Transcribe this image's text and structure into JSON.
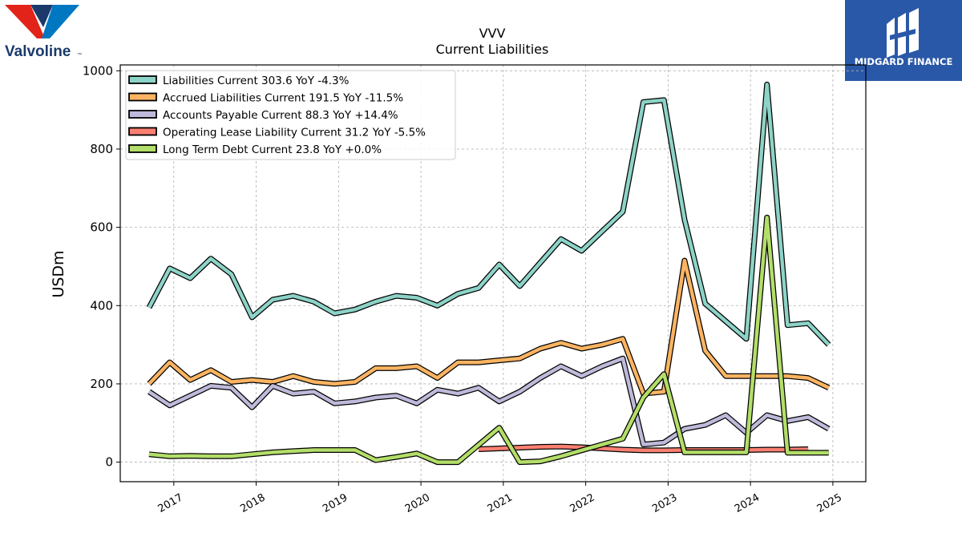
{
  "logos": {
    "left_text": "Valvoline",
    "left_tm": "™",
    "right_text": "MIDGARD FINANCE"
  },
  "colors": {
    "liabilities_current": "#8dd3c7",
    "accrued_liabilities": "#fdb462",
    "accounts_payable": "#bebada",
    "operating_lease": "#fb8072",
    "long_term_debt": "#b3de69",
    "valvoline_red": "#e2231a",
    "valvoline_blue": "#0078c1",
    "valvoline_navy": "#1b3a6b",
    "midgard_blue": "#2a58a8"
  },
  "chart_data": {
    "type": "line",
    "title": "VVV",
    "subtitle": "Current  Liabilities",
    "xlabel": "",
    "ylabel": "USDm",
    "ylim": [
      -50,
      1015
    ],
    "xlim": [
      2016.35,
      2025.4
    ],
    "yticks": [
      0,
      200,
      400,
      600,
      800,
      1000
    ],
    "xticks": [
      2017,
      2018,
      2019,
      2020,
      2021,
      2022,
      2023,
      2024,
      2025
    ],
    "xtick_labels": [
      "2017",
      "2018",
      "2019",
      "2020",
      "2021",
      "2022",
      "2023",
      "2024",
      "2025"
    ],
    "grid": true,
    "legend_position": "top-left",
    "series": [
      {
        "name": "Liabilities Current  303.6 YoY -4.3%",
        "color": "#8dd3c7",
        "x": [
          2016.7,
          2016.95,
          2017.2,
          2017.45,
          2017.7,
          2017.95,
          2018.2,
          2018.45,
          2018.7,
          2018.95,
          2019.2,
          2019.45,
          2019.7,
          2019.95,
          2020.2,
          2020.45,
          2020.7,
          2020.95,
          2021.2,
          2021.45,
          2021.7,
          2021.95,
          2022.2,
          2022.45,
          2022.7,
          2022.95,
          2023.2,
          2023.45,
          2023.7,
          2023.95,
          2024.2,
          2024.45,
          2024.7,
          2024.95
        ],
        "y": [
          395,
          495,
          470,
          520,
          480,
          370,
          415,
          425,
          410,
          380,
          390,
          410,
          425,
          420,
          400,
          430,
          445,
          505,
          450,
          510,
          570,
          540,
          590,
          640,
          920,
          925,
          620,
          405,
          360,
          315,
          965,
          350,
          355,
          300
        ]
      },
      {
        "name": "Accrued Liabilities Current  191.5 YoY -11.5%",
        "color": "#fdb462",
        "x": [
          2016.7,
          2016.95,
          2017.2,
          2017.45,
          2017.7,
          2017.95,
          2018.2,
          2018.45,
          2018.7,
          2018.95,
          2019.2,
          2019.45,
          2019.7,
          2019.95,
          2020.2,
          2020.45,
          2020.7,
          2020.95,
          2021.2,
          2021.45,
          2021.7,
          2021.95,
          2022.2,
          2022.45,
          2022.7,
          2022.95,
          2023.2,
          2023.45,
          2023.7,
          2023.95,
          2024.2,
          2024.45,
          2024.7,
          2024.95
        ],
        "y": [
          200,
          255,
          210,
          235,
          205,
          210,
          205,
          220,
          205,
          200,
          205,
          240,
          240,
          245,
          215,
          255,
          255,
          260,
          265,
          290,
          305,
          290,
          300,
          315,
          175,
          180,
          515,
          285,
          220,
          220,
          220,
          220,
          215,
          190
        ]
      },
      {
        "name": "Accounts Payable Current  88.3 YoY +14.4%",
        "color": "#bebada",
        "x": [
          2016.7,
          2016.95,
          2017.2,
          2017.45,
          2017.7,
          2017.95,
          2018.2,
          2018.45,
          2018.7,
          2018.95,
          2019.2,
          2019.45,
          2019.7,
          2019.95,
          2020.2,
          2020.45,
          2020.7,
          2020.95,
          2021.2,
          2021.45,
          2021.7,
          2021.95,
          2022.2,
          2022.45,
          2022.7,
          2022.95,
          2023.2,
          2023.45,
          2023.7,
          2023.95,
          2024.2,
          2024.45,
          2024.7,
          2024.95
        ],
        "y": [
          180,
          145,
          170,
          195,
          190,
          140,
          195,
          175,
          180,
          150,
          155,
          165,
          170,
          150,
          185,
          175,
          190,
          155,
          180,
          215,
          245,
          220,
          245,
          265,
          45,
          50,
          85,
          95,
          120,
          75,
          120,
          105,
          115,
          85
        ]
      },
      {
        "name": "Operating Lease Liability Current  31.2 YoY -5.5%",
        "color": "#fb8072",
        "x": [
          2020.7,
          2020.95,
          2021.2,
          2021.45,
          2021.7,
          2021.95,
          2022.2,
          2022.45,
          2022.7,
          2022.95,
          2023.2,
          2023.45,
          2023.7,
          2023.95,
          2024.2,
          2024.45,
          2024.7
        ],
        "y": [
          33,
          35,
          37,
          39,
          40,
          38,
          35,
          32,
          30,
          30,
          31,
          31,
          31,
          31,
          32,
          32,
          33
        ]
      },
      {
        "name": "Long Term Debt Current  23.8 YoY +0.0%",
        "color": "#b3de69",
        "x": [
          2016.7,
          2016.95,
          2017.2,
          2017.45,
          2017.7,
          2017.95,
          2018.2,
          2018.45,
          2018.7,
          2018.95,
          2019.2,
          2019.45,
          2019.7,
          2019.95,
          2020.2,
          2020.45,
          2020.7,
          2020.95,
          2021.2,
          2021.45,
          2021.7,
          2021.95,
          2022.2,
          2022.45,
          2022.7,
          2022.95,
          2023.2,
          2023.45,
          2023.7,
          2023.95,
          2024.2,
          2024.45,
          2024.7,
          2024.95
        ],
        "y": [
          20,
          15,
          16,
          15,
          15,
          20,
          25,
          28,
          31,
          31,
          31,
          5,
          13,
          22,
          0,
          0,
          44,
          88,
          0,
          2,
          15,
          30,
          45,
          60,
          165,
          225,
          25,
          25,
          25,
          25,
          625,
          24,
          24,
          24
        ]
      }
    ]
  }
}
